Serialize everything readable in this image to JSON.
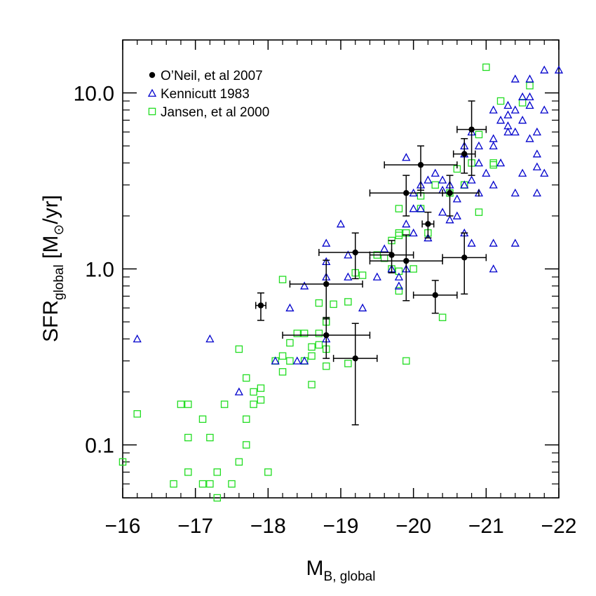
{
  "chart_data": {
    "type": "scatter",
    "xlabel": "M",
    "xlabel_sub": "B, global",
    "ylabel_main": "SFR",
    "ylabel_sub": "global",
    "ylabel_unit_open": " [M",
    "ylabel_unit_sun": "⊙",
    "ylabel_unit_close": "/yr]",
    "xlim": [
      -16,
      -22
    ],
    "ylim": [
      0.05,
      20
    ],
    "yscale": "log",
    "xticks": [
      -16,
      -17,
      -18,
      -19,
      -20,
      -21,
      -22
    ],
    "xtick_labels": [
      "−16",
      "−17",
      "−18",
      "−19",
      "−20",
      "−21",
      "−22"
    ],
    "yticks": [
      0.1,
      1.0,
      10.0
    ],
    "ytick_labels": [
      "0.1",
      "1.0",
      "10.0"
    ],
    "legend_position": "top-left",
    "colors": {
      "oneil": "#000000",
      "kennicutt": "#0000cc",
      "jansen": "#22dd22"
    },
    "series": [
      {
        "name": "O’Neil, et al 2007",
        "marker": "filled-circle",
        "points": [
          {
            "x": -17.9,
            "y": 0.62,
            "xerr": 0.07,
            "yerr": [
              0.51,
              0.73
            ]
          },
          {
            "x": -18.8,
            "y": 0.42,
            "xerr": 0.6,
            "yerr": [
              0.31,
              0.53
            ]
          },
          {
            "x": -18.8,
            "y": 0.82,
            "xerr": 0.5,
            "yerr": [
              0.52,
              1.12
            ]
          },
          {
            "x": -19.2,
            "y": 1.24,
            "xerr": 0.5,
            "yerr": [
              0.88,
              1.6
            ]
          },
          {
            "x": -19.2,
            "y": 0.31,
            "xerr": 0.3,
            "yerr": [
              0.13,
              0.49
            ]
          },
          {
            "x": -19.7,
            "y": 1.2,
            "xerr": 0.3,
            "yerr": [
              0.95,
              1.45
            ]
          },
          {
            "x": -19.9,
            "y": 1.11,
            "xerr": 0.5,
            "yerr": [
              0.66,
              1.56
            ]
          },
          {
            "x": -19.9,
            "y": 2.7,
            "xerr": 0.5,
            "yerr": [
              2.0,
              3.4
            ]
          },
          {
            "x": -20.1,
            "y": 3.9,
            "xerr": 0.5,
            "yerr": [
              2.8,
              5.0
            ]
          },
          {
            "x": -20.2,
            "y": 1.8,
            "xerr": 0.08,
            "yerr": [
              1.5,
              2.1
            ]
          },
          {
            "x": -20.3,
            "y": 0.71,
            "xerr": 0.3,
            "yerr": [
              0.56,
              0.86
            ]
          },
          {
            "x": -20.5,
            "y": 2.7,
            "xerr": 0.4,
            "yerr": [
              2.0,
              3.4
            ]
          },
          {
            "x": -20.7,
            "y": 4.5,
            "xerr": 0.15,
            "yerr": [
              3.5,
              5.5
            ]
          },
          {
            "x": -20.7,
            "y": 1.16,
            "xerr": 0.3,
            "yerr": [
              0.72,
              1.6
            ]
          },
          {
            "x": -20.8,
            "y": 6.2,
            "xerr": 0.2,
            "yerr": [
              3.4,
              9.0
            ]
          }
        ]
      },
      {
        "name": "Kennicutt 1983",
        "marker": "open-triangle",
        "points": [
          [
            -16.2,
            0.4
          ],
          [
            -17.2,
            0.4
          ],
          [
            -17.6,
            0.2
          ],
          [
            -18.3,
            0.6
          ],
          [
            -18.5,
            0.8
          ],
          [
            -18.1,
            0.3
          ],
          [
            -18.4,
            0.3
          ],
          [
            -18.5,
            0.3
          ],
          [
            -18.8,
            1.4
          ],
          [
            -18.8,
            1.1
          ],
          [
            -18.8,
            0.9
          ],
          [
            -18.8,
            0.4
          ],
          [
            -19.0,
            1.8
          ],
          [
            -19.1,
            0.9
          ],
          [
            -19.1,
            1.2
          ],
          [
            -19.3,
            0.6
          ],
          [
            -19.5,
            0.9
          ],
          [
            -19.6,
            1.3
          ],
          [
            -19.7,
            1.0
          ],
          [
            -19.8,
            0.9
          ],
          [
            -19.8,
            0.8
          ],
          [
            -19.9,
            1.0
          ],
          [
            -19.9,
            1.8
          ],
          [
            -19.9,
            4.3
          ],
          [
            -20.0,
            1.6
          ],
          [
            -20.0,
            2.2
          ],
          [
            -20.0,
            2.7
          ],
          [
            -20.1,
            3.0
          ],
          [
            -20.1,
            2.2
          ],
          [
            -20.2,
            1.5
          ],
          [
            -20.2,
            3.2
          ],
          [
            -20.3,
            3.5
          ],
          [
            -20.4,
            2.1
          ],
          [
            -20.4,
            3.2
          ],
          [
            -20.4,
            2.8
          ],
          [
            -20.5,
            3.0
          ],
          [
            -20.5,
            1.9
          ],
          [
            -20.6,
            2.0
          ],
          [
            -20.6,
            2.5
          ],
          [
            -20.7,
            3.0
          ],
          [
            -20.7,
            1.6
          ],
          [
            -20.7,
            4.5
          ],
          [
            -20.7,
            5.0
          ],
          [
            -20.8,
            1.4
          ],
          [
            -20.8,
            3.2
          ],
          [
            -20.8,
            6.0
          ],
          [
            -20.9,
            4.0
          ],
          [
            -20.9,
            5.0
          ],
          [
            -20.9,
            2.7
          ],
          [
            -21.0,
            3.5
          ],
          [
            -21.1,
            1.4
          ],
          [
            -21.1,
            1.0
          ],
          [
            -21.1,
            3.0
          ],
          [
            -21.1,
            5.0
          ],
          [
            -21.1,
            5.5
          ],
          [
            -21.1,
            8.0
          ],
          [
            -21.2,
            7.0
          ],
          [
            -21.2,
            4.0
          ],
          [
            -21.3,
            6.0
          ],
          [
            -21.3,
            7.5
          ],
          [
            -21.3,
            8.5
          ],
          [
            -21.4,
            6.0
          ],
          [
            -21.4,
            8.0
          ],
          [
            -21.4,
            12.0
          ],
          [
            -21.4,
            1.4
          ],
          [
            -21.5,
            7.0
          ],
          [
            -21.5,
            3.5
          ],
          [
            -21.5,
            9.5
          ],
          [
            -21.6,
            5.5
          ],
          [
            -21.6,
            12.0
          ],
          [
            -21.6,
            9.5
          ],
          [
            -21.7,
            2.7
          ],
          [
            -21.7,
            4.5
          ],
          [
            -21.7,
            6.0
          ],
          [
            -21.7,
            3.8
          ],
          [
            -21.8,
            3.5
          ],
          [
            -21.8,
            8.0
          ],
          [
            -21.8,
            13.5
          ],
          [
            -22.0,
            13.5
          ],
          [
            -21.4,
            2.7
          ],
          [
            -21.6,
            8.5
          ],
          [
            -21.3,
            6.5
          ]
        ]
      },
      {
        "name": "Jansen, et al 2000",
        "marker": "open-square",
        "points": [
          [
            -16.0,
            0.08
          ],
          [
            -16.2,
            0.15
          ],
          [
            -16.7,
            0.06
          ],
          [
            -16.8,
            0.17
          ],
          [
            -16.9,
            0.17
          ],
          [
            -16.9,
            0.11
          ],
          [
            -16.9,
            0.07
          ],
          [
            -17.1,
            0.06
          ],
          [
            -17.1,
            0.14
          ],
          [
            -17.2,
            0.11
          ],
          [
            -17.2,
            0.06
          ],
          [
            -17.3,
            0.07
          ],
          [
            -17.3,
            0.05
          ],
          [
            -17.4,
            0.17
          ],
          [
            -17.5,
            0.06
          ],
          [
            -17.6,
            0.08
          ],
          [
            -17.6,
            0.35
          ],
          [
            -17.7,
            0.24
          ],
          [
            -17.7,
            0.14
          ],
          [
            -17.7,
            0.1
          ],
          [
            -17.8,
            0.2
          ],
          [
            -17.8,
            0.17
          ],
          [
            -17.9,
            0.21
          ],
          [
            -17.9,
            0.18
          ],
          [
            -18.0,
            0.07
          ],
          [
            -18.1,
            0.3
          ],
          [
            -18.2,
            0.87
          ],
          [
            -18.2,
            0.26
          ],
          [
            -18.2,
            0.32
          ],
          [
            -18.3,
            0.38
          ],
          [
            -18.3,
            0.3
          ],
          [
            -18.4,
            0.43
          ],
          [
            -18.5,
            0.43
          ],
          [
            -18.5,
            0.3
          ],
          [
            -18.6,
            0.32
          ],
          [
            -18.6,
            0.22
          ],
          [
            -18.6,
            0.36
          ],
          [
            -18.7,
            0.37
          ],
          [
            -18.7,
            0.43
          ],
          [
            -18.7,
            0.64
          ],
          [
            -18.8,
            0.5
          ],
          [
            -18.8,
            0.5
          ],
          [
            -18.8,
            0.35
          ],
          [
            -18.8,
            0.28
          ],
          [
            -18.9,
            0.63
          ],
          [
            -19.1,
            0.65
          ],
          [
            -19.1,
            0.29
          ],
          [
            -19.2,
            0.95
          ],
          [
            -19.3,
            0.92
          ],
          [
            -19.5,
            1.2
          ],
          [
            -19.6,
            1.15
          ],
          [
            -19.7,
            1.45
          ],
          [
            -19.7,
            1.0
          ],
          [
            -19.8,
            1.6
          ],
          [
            -19.8,
            1.55
          ],
          [
            -19.8,
            2.2
          ],
          [
            -19.8,
            0.75
          ],
          [
            -19.8,
            0.97
          ],
          [
            -19.9,
            0.3
          ],
          [
            -19.9,
            1.6
          ],
          [
            -20.0,
            1.0
          ],
          [
            -20.1,
            2.2
          ],
          [
            -20.1,
            2.6
          ],
          [
            -20.2,
            1.6
          ],
          [
            -20.3,
            3.0
          ],
          [
            -20.4,
            0.53
          ],
          [
            -20.5,
            2.7
          ],
          [
            -20.6,
            3.7
          ],
          [
            -20.7,
            3.0
          ],
          [
            -20.8,
            4.0
          ],
          [
            -20.9,
            5.8
          ],
          [
            -21.0,
            14.0
          ],
          [
            -20.9,
            2.1
          ],
          [
            -21.1,
            4.0
          ],
          [
            -21.1,
            3.9
          ],
          [
            -21.2,
            9.0
          ],
          [
            -21.5,
            8.8
          ],
          [
            -21.6,
            11.0
          ]
        ]
      }
    ]
  }
}
